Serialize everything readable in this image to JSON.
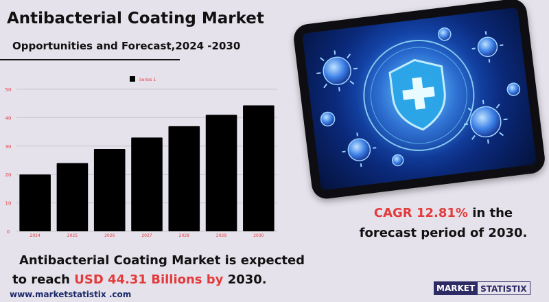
{
  "header": {
    "title": "Antibacterial Coating Market",
    "subtitle": "Opportunities and Forecast,2024 -2030"
  },
  "chart_data": {
    "type": "bar",
    "categories": [
      "2024",
      "2025",
      "2026",
      "2027",
      "2028",
      "2029",
      "2030"
    ],
    "series": [
      {
        "name": "Series 1",
        "values": [
          20,
          24,
          29,
          33,
          37,
          41,
          44.31
        ]
      }
    ],
    "ylim": [
      0,
      50
    ],
    "yticks": [
      0,
      10,
      20,
      30,
      40,
      50
    ],
    "grid": true,
    "legend": "top",
    "colors": {
      "bar": "#000000",
      "legend_text": "#e23b3b",
      "xtick": "#e23b3b",
      "ytick": "#e23b3b"
    }
  },
  "callout": {
    "cagr_label": "CAGR",
    "cagr_value": "12.81%",
    "cagr_suffix": "in the",
    "cagr_line2": "forecast period of 2030."
  },
  "statement": {
    "line1": "Antibacterial Coating Market is expected",
    "line2_prefix": "to reach",
    "line2_value": "USD 44.31 Billions by",
    "line2_suffix": "2030."
  },
  "footer": {
    "url": "www.marketstatistix .com",
    "logo_part1": "MARKET",
    "logo_part2": "STATISTIX"
  },
  "colors": {
    "accent_red": "#e23b3b",
    "brand_navy": "#2c2b63",
    "background": "#e6e2ec"
  },
  "icons": {
    "illustration": "shield-cross-virus-illustration"
  }
}
